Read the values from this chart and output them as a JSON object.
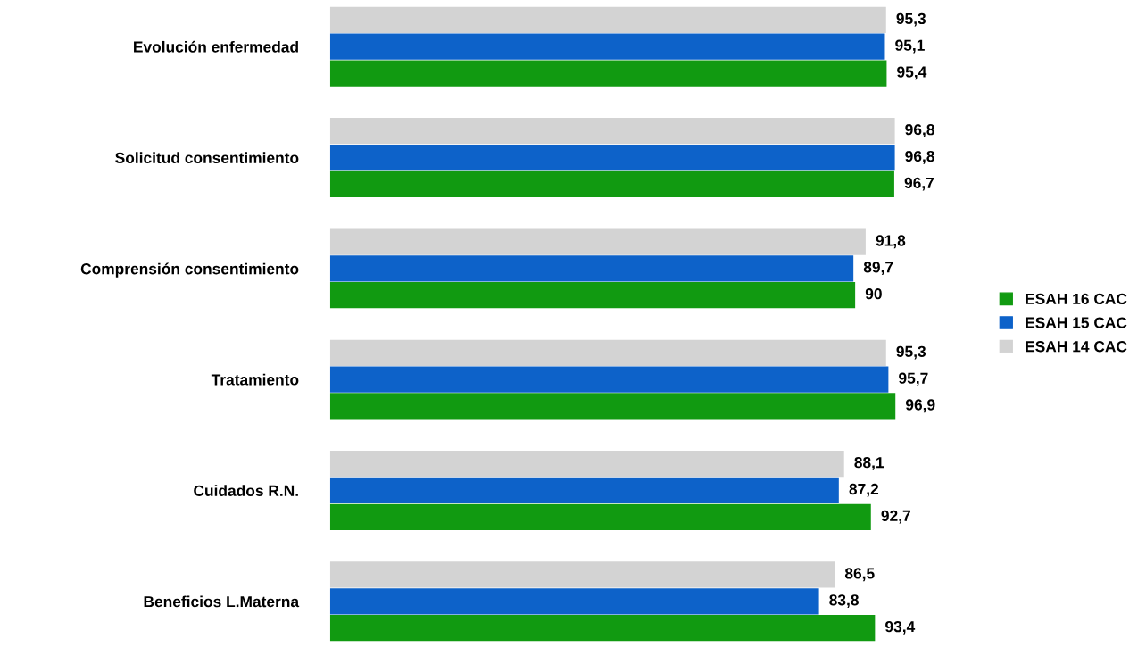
{
  "chart_data": {
    "type": "bar",
    "orientation": "horizontal",
    "categories": [
      "Evolución enfermedad",
      "Solicitud consentimiento",
      "Comprensión consentimiento",
      "Tratamiento",
      "Cuidados R.N.",
      "Beneficios L.Materna"
    ],
    "series": [
      {
        "name": "ESAH 16 CAC",
        "color": "#119a11",
        "values": [
          95.4,
          96.7,
          90,
          96.9,
          92.7,
          93.4
        ],
        "value_labels": [
          "95,4",
          "96,7",
          "90",
          "96,9",
          "92,7",
          "93,4"
        ]
      },
      {
        "name": "ESAH 15 CAC",
        "color": "#0d62c9",
        "values": [
          95.1,
          96.8,
          89.7,
          95.7,
          87.2,
          83.8
        ],
        "value_labels": [
          "95,1",
          "96,8",
          "89,7",
          "95,7",
          "87,2",
          "83,8"
        ]
      },
      {
        "name": "ESAH 14 CAC",
        "color": "#d3d3d3",
        "values": [
          95.3,
          96.8,
          91.8,
          95.3,
          88.1,
          86.5
        ],
        "value_labels": [
          "95,3",
          "96,8",
          "91,8",
          "95,3",
          "88,1",
          "86,5"
        ]
      }
    ],
    "tick_labels": "y",
    "grid": false,
    "legend": "right"
  }
}
